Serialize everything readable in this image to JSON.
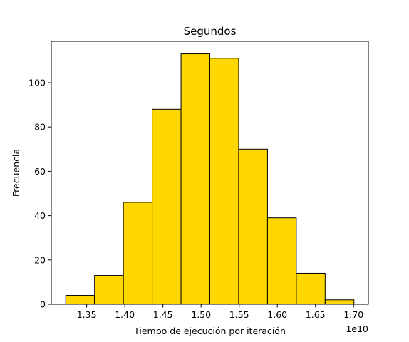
{
  "chart_data": {
    "type": "bar",
    "title": "Segundos",
    "xlabel": "Tiempo de ejecución por iteración",
    "ylabel": "Frecuencia",
    "x_offset_label": "1e10",
    "bins": [
      {
        "start": 1.3225,
        "end": 1.3603,
        "count": 4
      },
      {
        "start": 1.3603,
        "end": 1.3981,
        "count": 13
      },
      {
        "start": 1.3981,
        "end": 1.4359,
        "count": 46
      },
      {
        "start": 1.4359,
        "end": 1.4737,
        "count": 88
      },
      {
        "start": 1.4737,
        "end": 1.5115,
        "count": 113
      },
      {
        "start": 1.5115,
        "end": 1.5493,
        "count": 111
      },
      {
        "start": 1.5493,
        "end": 1.5871,
        "count": 70
      },
      {
        "start": 1.5871,
        "end": 1.6249,
        "count": 39
      },
      {
        "start": 1.6249,
        "end": 1.6627,
        "count": 14
      },
      {
        "start": 1.6627,
        "end": 1.7005,
        "count": 2
      }
    ],
    "xlim": [
      1.3036,
      1.7194
    ],
    "ylim": [
      0,
      118.65
    ],
    "xticks": [
      1.35,
      1.4,
      1.45,
      1.5,
      1.55,
      1.6,
      1.65,
      1.7
    ],
    "xtick_labels": [
      "1.35",
      "1.40",
      "1.45",
      "1.50",
      "1.55",
      "1.60",
      "1.65",
      "1.70"
    ],
    "yticks": [
      0,
      20,
      40,
      60,
      80,
      100
    ],
    "ytick_labels": [
      "0",
      "20",
      "40",
      "60",
      "80",
      "100"
    ],
    "grid": false,
    "bar_color": "#FFD700",
    "edge_color": "#000000"
  }
}
